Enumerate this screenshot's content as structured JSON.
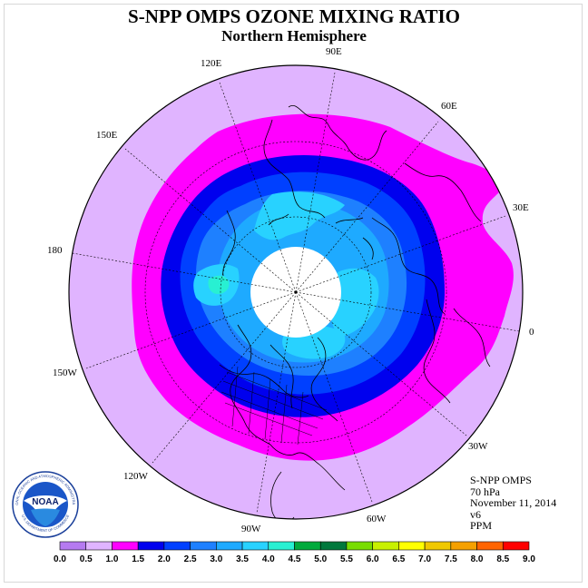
{
  "title": "S-NPP OMPS OZONE MIXING RATIO",
  "subtitle": "Northern Hemisphere",
  "longitude_labels": [
    "90E",
    "60E",
    "30E",
    "0",
    "30W",
    "60W",
    "90W",
    "120W",
    "150W",
    "180",
    "150E",
    "120E"
  ],
  "info": {
    "instrument": "S-NPP OMPS",
    "pressure": "70 hPa",
    "date": "November 11, 2014",
    "version": "v6",
    "units": "PPM"
  },
  "logo": {
    "text": "NOAA",
    "ring_top": "NATIONAL OCEANIC AND ATMOSPHERIC ADMINISTRATION",
    "ring_bottom": "U.S. DEPARTMENT OF COMMERCE"
  },
  "colorbar": {
    "ticks": [
      "0.0",
      "0.5",
      "1.0",
      "1.5",
      "2.0",
      "2.5",
      "3.0",
      "3.5",
      "4.0",
      "4.5",
      "5.0",
      "5.5",
      "6.0",
      "6.5",
      "7.0",
      "7.5",
      "8.0",
      "8.5",
      "9.0"
    ],
    "colors": [
      "#b57af0",
      "#e0b4ff",
      "#ff00ff",
      "#0000ee",
      "#0040ff",
      "#1e80ff",
      "#1eaaff",
      "#28d2ff",
      "#28f0d2",
      "#00aa3c",
      "#00783c",
      "#78dc00",
      "#c8f000",
      "#ffff00",
      "#f0c800",
      "#f5a000",
      "#ff6400",
      "#ff0000",
      "#a0643c"
    ]
  },
  "colors": {
    "outer": "#e0b4ff",
    "magenta": "#ff00ff",
    "dark_blue": "#0000ee",
    "blue": "#0040ff",
    "mid_blue": "#1e80ff",
    "light_blue": "#1eaaff",
    "cyan": "#28d2ff",
    "teal": "#28f0d2",
    "pole_hole": "#ffffff"
  }
}
